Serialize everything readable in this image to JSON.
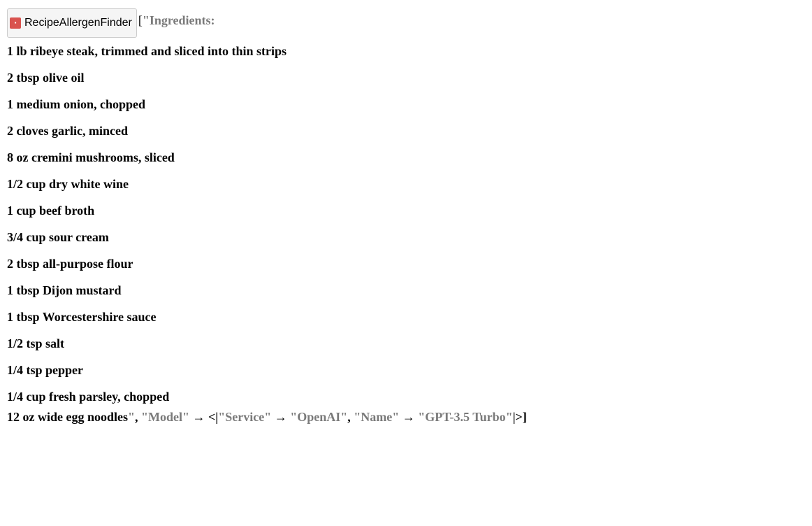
{
  "resourceFunction": {
    "name": "RecipeAllergenFinder"
  },
  "recipe": {
    "header": "Ingredients:",
    "lines": [
      "1 lb ribeye steak, trimmed and sliced into thin strips",
      "2 tbsp olive oil",
      "1 medium onion, chopped",
      "2 cloves garlic, minced",
      "8 oz cremini mushrooms, sliced",
      "1/2 cup dry white wine",
      "1 cup beef broth",
      "3/4 cup sour cream",
      "2 tbsp all-purpose flour",
      "1 tbsp Dijon mustard",
      "1 tbsp Worcestershire sauce",
      "1/2 tsp salt",
      "1/4 tsp pepper",
      "1/4 cup fresh parsley, chopped"
    ],
    "lastLine": "12 oz wide egg noodles"
  },
  "modelOption": {
    "key": "Model",
    "serviceKey": "Service",
    "serviceValue": "OpenAI",
    "nameKey": "Name",
    "nameValue": "GPT-3.5 Turbo"
  },
  "syntax": {
    "openBracket": "[",
    "closeBracket": "]",
    "quote": "\"",
    "comma": ",",
    "arrow": "→",
    "assocOpen": "<|",
    "assocClose": "|>"
  }
}
